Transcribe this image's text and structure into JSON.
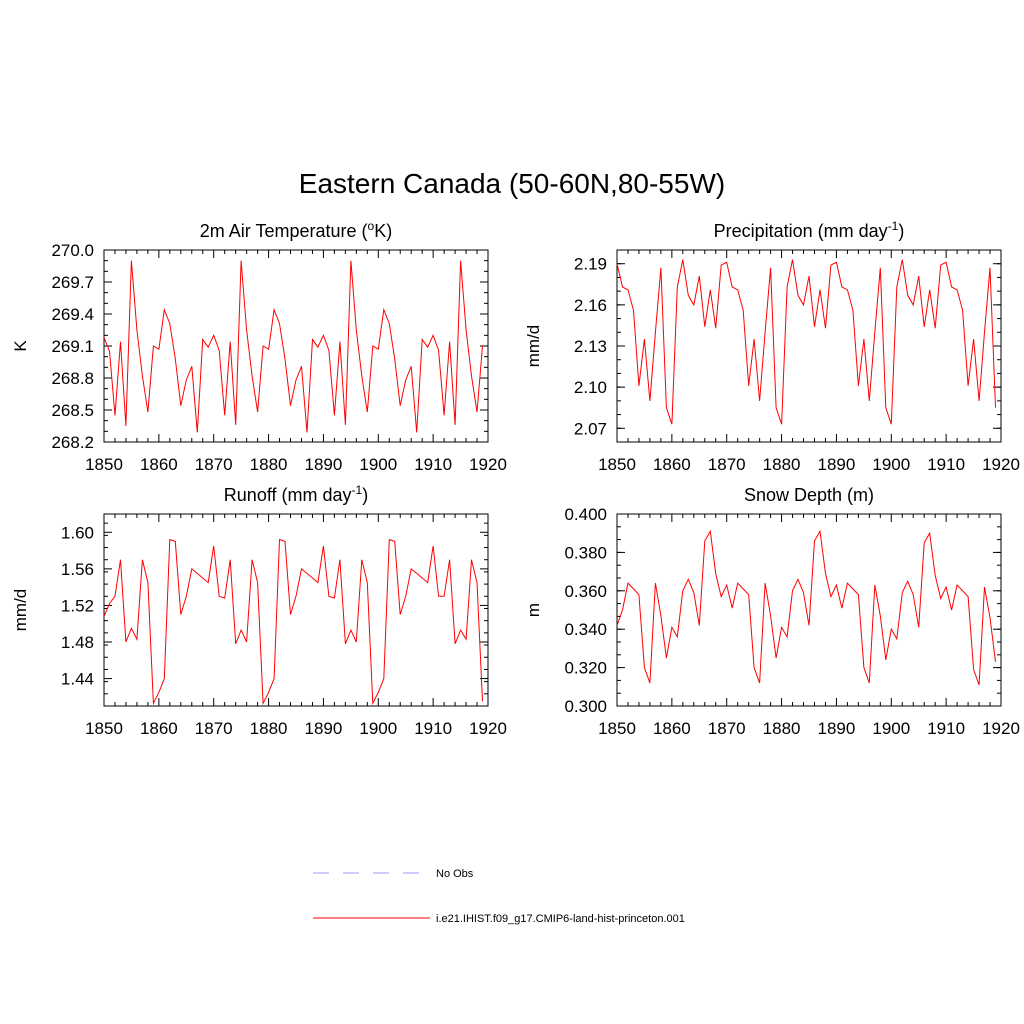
{
  "title": "Eastern Canada (50-60N,80-55W)",
  "colors": {
    "model_line": "#ff0000",
    "obs_line": "#9999ff",
    "axis": "#000000"
  },
  "legend": {
    "obs_label": "No Obs",
    "model_label": "i.e21.IHIST.f09_g17.CMIP6-land-hist-princeton.001"
  },
  "chart_data": [
    {
      "type": "line",
      "title": "2m Air Temperature (",
      "title_sup": "o",
      "title_tail": "K)",
      "ylabel": "K",
      "xlim": [
        1850,
        1920
      ],
      "ylim": [
        268.2,
        270.0
      ],
      "xticks": [
        "1850",
        "1860",
        "1870",
        "1880",
        "1890",
        "1900",
        "1910",
        "1920"
      ],
      "yticks": [
        "270.0",
        "269.7",
        "269.4",
        "269.1",
        "268.8",
        "268.5",
        "268.2"
      ],
      "series": [
        {
          "x": [
            1850,
            1851,
            1852,
            1853,
            1854,
            1855,
            1856,
            1857,
            1858,
            1859,
            1860,
            1861,
            1862,
            1863,
            1864,
            1865,
            1866,
            1867,
            1868,
            1869,
            1870,
            1871,
            1872,
            1873,
            1874,
            1875,
            1876,
            1877,
            1878,
            1879,
            1880,
            1881,
            1882,
            1883,
            1884,
            1885,
            1886,
            1887,
            1888,
            1889,
            1890,
            1891,
            1892,
            1893,
            1894,
            1895,
            1896,
            1897,
            1898,
            1899,
            1900,
            1901,
            1902,
            1903,
            1904,
            1905,
            1906,
            1907,
            1908,
            1909,
            1910,
            1911,
            1912,
            1913,
            1914,
            1915,
            1916,
            1917,
            1918,
            1919
          ],
          "values": [
            269.18,
            269.05,
            268.45,
            269.14,
            268.35,
            269.9,
            269.25,
            268.82,
            268.48,
            269.1,
            269.07,
            269.44,
            269.31,
            268.98,
            268.54,
            268.78,
            268.91,
            268.29,
            269.16,
            269.09,
            269.2,
            269.06,
            268.45,
            269.14,
            268.36,
            269.9,
            269.25,
            268.82,
            268.48,
            269.1,
            269.07,
            269.44,
            269.31,
            268.98,
            268.54,
            268.78,
            268.91,
            268.29,
            269.16,
            269.09,
            269.2,
            269.06,
            268.45,
            269.14,
            268.36,
            269.9,
            269.25,
            268.82,
            268.48,
            269.1,
            269.07,
            269.44,
            269.31,
            268.98,
            268.54,
            268.78,
            268.91,
            268.29,
            269.16,
            269.09,
            269.2,
            269.06,
            268.45,
            269.14,
            268.36,
            269.9,
            269.25,
            268.82,
            268.48,
            269.1
          ]
        }
      ]
    },
    {
      "type": "line",
      "title": "Precipitation (mm day",
      "title_sup": "-1",
      "title_tail": ")",
      "ylabel": "mm/d",
      "xlim": [
        1850,
        1920
      ],
      "ylim": [
        2.06,
        2.2
      ],
      "xticks": [
        "1850",
        "1860",
        "1870",
        "1880",
        "1890",
        "1900",
        "1910",
        "1920"
      ],
      "yticks": [
        "2.19",
        "2.16",
        "2.13",
        "2.10",
        "2.07"
      ],
      "series": [
        {
          "x": [
            1850,
            1851,
            1852,
            1853,
            1854,
            1855,
            1856,
            1857,
            1858,
            1859,
            1860,
            1861,
            1862,
            1863,
            1864,
            1865,
            1866,
            1867,
            1868,
            1869,
            1870,
            1871,
            1872,
            1873,
            1874,
            1875,
            1876,
            1877,
            1878,
            1879,
            1880,
            1881,
            1882,
            1883,
            1884,
            1885,
            1886,
            1887,
            1888,
            1889,
            1890,
            1891,
            1892,
            1893,
            1894,
            1895,
            1896,
            1897,
            1898,
            1899,
            1900,
            1901,
            1902,
            1903,
            1904,
            1905,
            1906,
            1907,
            1908,
            1909,
            1910,
            1911,
            1912,
            1913,
            1914,
            1915,
            1916,
            1917,
            1918,
            1919
          ],
          "values": [
            2.19,
            2.173,
            2.171,
            2.156,
            2.101,
            2.135,
            2.09,
            2.14,
            2.187,
            2.085,
            2.073,
            2.173,
            2.193,
            2.167,
            2.16,
            2.181,
            2.144,
            2.171,
            2.143,
            2.189,
            2.191,
            2.173,
            2.171,
            2.156,
            2.101,
            2.135,
            2.09,
            2.14,
            2.187,
            2.085,
            2.073,
            2.173,
            2.193,
            2.167,
            2.16,
            2.181,
            2.144,
            2.171,
            2.143,
            2.189,
            2.191,
            2.173,
            2.171,
            2.156,
            2.101,
            2.135,
            2.09,
            2.14,
            2.187,
            2.085,
            2.073,
            2.173,
            2.193,
            2.167,
            2.16,
            2.181,
            2.144,
            2.171,
            2.143,
            2.189,
            2.191,
            2.173,
            2.171,
            2.156,
            2.101,
            2.135,
            2.09,
            2.14,
            2.187,
            2.085
          ]
        }
      ]
    },
    {
      "type": "line",
      "title": "Runoff (mm day",
      "title_sup": "-1",
      "title_tail": ")",
      "ylabel": "mm/d",
      "xlim": [
        1850,
        1920
      ],
      "ylim": [
        1.41,
        1.62
      ],
      "xticks": [
        "1850",
        "1860",
        "1870",
        "1880",
        "1890",
        "1900",
        "1910",
        "1920"
      ],
      "yticks": [
        "1.60",
        "1.56",
        "1.52",
        "1.48",
        "1.44"
      ],
      "series": [
        {
          "x": [
            1850,
            1851,
            1852,
            1853,
            1854,
            1855,
            1856,
            1857,
            1858,
            1859,
            1860,
            1861,
            1862,
            1863,
            1864,
            1865,
            1866,
            1867,
            1868,
            1869,
            1870,
            1871,
            1872,
            1873,
            1874,
            1875,
            1876,
            1877,
            1878,
            1879,
            1880,
            1881,
            1882,
            1883,
            1884,
            1885,
            1886,
            1887,
            1888,
            1889,
            1890,
            1891,
            1892,
            1893,
            1894,
            1895,
            1896,
            1897,
            1898,
            1899,
            1900,
            1901,
            1902,
            1903,
            1904,
            1905,
            1906,
            1907,
            1908,
            1909,
            1910,
            1911,
            1912,
            1913,
            1914,
            1915,
            1916,
            1917,
            1918,
            1919
          ],
          "values": [
            1.508,
            1.522,
            1.53,
            1.57,
            1.48,
            1.495,
            1.483,
            1.57,
            1.545,
            1.413,
            1.425,
            1.44,
            1.592,
            1.59,
            1.51,
            1.53,
            1.56,
            1.555,
            1.55,
            1.545,
            1.585,
            1.53,
            1.528,
            1.57,
            1.478,
            1.493,
            1.48,
            1.57,
            1.545,
            1.413,
            1.425,
            1.44,
            1.592,
            1.59,
            1.51,
            1.53,
            1.56,
            1.555,
            1.55,
            1.545,
            1.585,
            1.53,
            1.528,
            1.57,
            1.478,
            1.493,
            1.48,
            1.57,
            1.545,
            1.413,
            1.425,
            1.44,
            1.592,
            1.59,
            1.51,
            1.53,
            1.56,
            1.555,
            1.55,
            1.545,
            1.585,
            1.53,
            1.53,
            1.57,
            1.478,
            1.493,
            1.483,
            1.57,
            1.545,
            1.415
          ]
        }
      ]
    },
    {
      "type": "line",
      "title": "Snow Depth (m)",
      "title_sup": "",
      "title_tail": "",
      "ylabel": "m",
      "xlim": [
        1850,
        1920
      ],
      "ylim": [
        0.3,
        0.4
      ],
      "xticks": [
        "1850",
        "1860",
        "1870",
        "1880",
        "1890",
        "1900",
        "1910",
        "1920"
      ],
      "yticks": [
        "0.400",
        "0.380",
        "0.360",
        "0.340",
        "0.320",
        "0.300"
      ],
      "series": [
        {
          "x": [
            1850,
            1851,
            1852,
            1853,
            1854,
            1855,
            1856,
            1857,
            1858,
            1859,
            1860,
            1861,
            1862,
            1863,
            1864,
            1865,
            1866,
            1867,
            1868,
            1869,
            1870,
            1871,
            1872,
            1873,
            1874,
            1875,
            1876,
            1877,
            1878,
            1879,
            1880,
            1881,
            1882,
            1883,
            1884,
            1885,
            1886,
            1887,
            1888,
            1889,
            1890,
            1891,
            1892,
            1893,
            1894,
            1895,
            1896,
            1897,
            1898,
            1899,
            1900,
            1901,
            1902,
            1903,
            1904,
            1905,
            1906,
            1907,
            1908,
            1909,
            1910,
            1911,
            1912,
            1913,
            1914,
            1915,
            1916,
            1917,
            1918,
            1919
          ],
          "values": [
            0.342,
            0.35,
            0.364,
            0.361,
            0.358,
            0.32,
            0.312,
            0.364,
            0.347,
            0.325,
            0.341,
            0.336,
            0.36,
            0.366,
            0.359,
            0.342,
            0.386,
            0.391,
            0.369,
            0.357,
            0.363,
            0.351,
            0.364,
            0.361,
            0.358,
            0.32,
            0.312,
            0.364,
            0.347,
            0.325,
            0.341,
            0.336,
            0.36,
            0.366,
            0.359,
            0.342,
            0.386,
            0.391,
            0.369,
            0.357,
            0.363,
            0.351,
            0.364,
            0.361,
            0.358,
            0.32,
            0.312,
            0.363,
            0.347,
            0.324,
            0.34,
            0.335,
            0.359,
            0.365,
            0.358,
            0.341,
            0.385,
            0.39,
            0.368,
            0.356,
            0.362,
            0.35,
            0.363,
            0.36,
            0.357,
            0.319,
            0.311,
            0.362,
            0.346,
            0.323
          ]
        }
      ]
    }
  ]
}
